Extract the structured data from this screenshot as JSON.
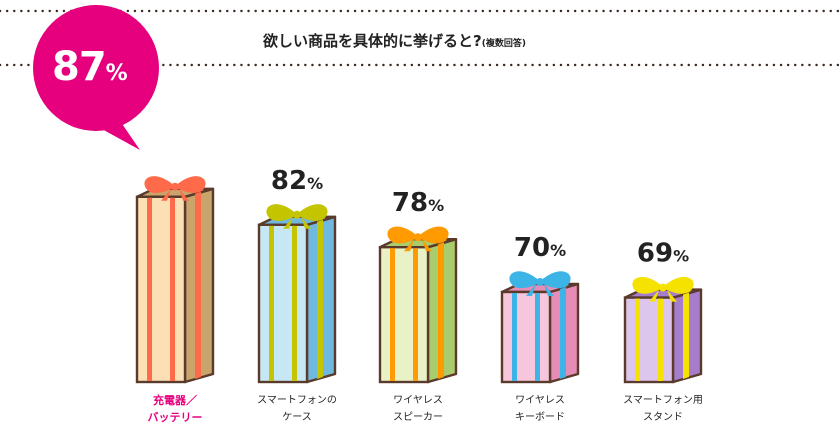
{
  "title": {
    "main": "欲しい商品を具体的に挙げると?",
    "note": "(複数回答)"
  },
  "chart_data": {
    "type": "bar",
    "title": "欲しい商品を具体的に挙げると?(複数回答)",
    "categories": [
      [
        "充電器／",
        "バッテリー"
      ],
      [
        "スマートフォンの",
        "ケース"
      ],
      [
        "ワイヤレス",
        "スピーカー"
      ],
      [
        "ワイヤレス",
        "キーボード"
      ],
      [
        "スマートフォン用",
        "スタンド"
      ]
    ],
    "values": [
      87,
      82,
      78,
      70,
      69
    ],
    "value_labels": [
      "87%",
      "82%",
      "78%",
      "70%",
      "69%"
    ],
    "unit": "%",
    "highlight_index": 0,
    "colors": {
      "accent": "#e6007e",
      "outline": "#5a3a2a",
      "boxes": [
        {
          "front": "#fbe0b6",
          "side": "#c9a46b",
          "ribbon": "#ff6b4a"
        },
        {
          "front": "#c6e8f6",
          "side": "#6fb8df",
          "ribbon": "#c4c400"
        },
        {
          "front": "#e8f2c6",
          "side": "#a9cc6d",
          "ribbon": "#ff9a00"
        },
        {
          "front": "#f8c6dc",
          "side": "#e58cb7",
          "ribbon": "#3cb4e6"
        },
        {
          "front": "#dcc6ee",
          "side": "#a57dcc",
          "ribbon": "#f5e200"
        }
      ]
    }
  }
}
